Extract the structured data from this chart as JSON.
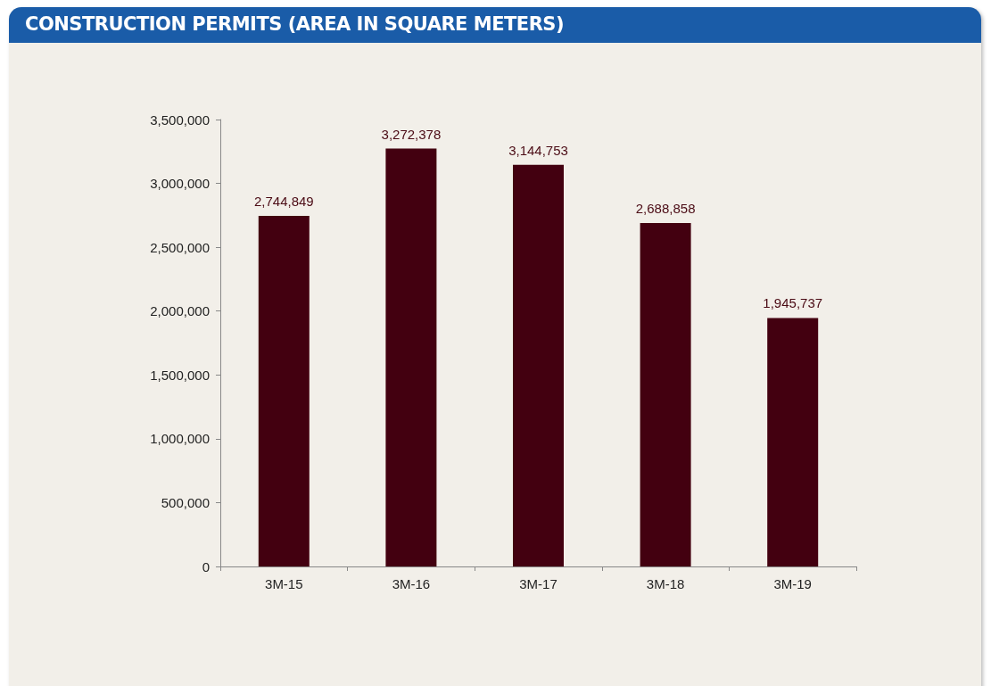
{
  "chart_data": {
    "type": "bar",
    "title": "CONSTRUCTION PERMITS (AREA IN SQUARE METERS)",
    "categories": [
      "3M-15",
      "3M-16",
      "3M-17",
      "3M-18",
      "3M-19"
    ],
    "values": [
      2744849,
      3272378,
      3144753,
      2688858,
      1945737
    ],
    "value_labels": [
      "2,744,849",
      "3,272,378",
      "3,144,753",
      "2,688,858",
      "1,945,737"
    ],
    "color": "#430010",
    "ylim": [
      0,
      3500000
    ],
    "yticks": [
      0,
      {
        "value": 500000,
        "label": "500,000"
      },
      {
        "value": 1000000,
        "label": "1,000,000"
      },
      {
        "value": 1500000,
        "label": "1,500,000"
      },
      {
        "value": 2000000,
        "label": "2,000,000"
      },
      {
        "value": 2500000,
        "label": "2,500,000"
      },
      {
        "value": 3000000,
        "label": "3,000,000"
      },
      {
        "value": 3500000,
        "label": "3,500,000"
      }
    ]
  }
}
